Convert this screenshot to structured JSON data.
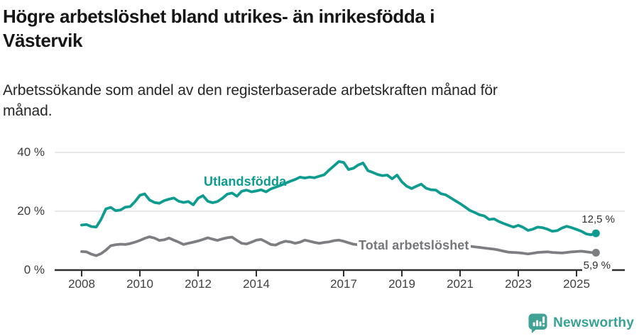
{
  "header": {
    "title_lines": [
      "Högre arbetslöshet bland utrikes- än inrikesfödda i",
      "Västervik"
    ],
    "subtitle_lines": [
      "Arbetssökande som andel av den registerbaserade arbetskraften månad för",
      "månad."
    ]
  },
  "chart_data": {
    "type": "line",
    "title": "Högre arbetslöshet bland utrikes- än inrikesfödda i Västervik",
    "subtitle": "Arbetssökande som andel av den registerbaserade arbetskraften månad för månad.",
    "unit": "percent",
    "ylim": [
      0,
      40
    ],
    "grid": "horizontal",
    "x_ticks": [
      2008,
      2010,
      2012,
      2014,
      2017,
      2019,
      2021,
      2023,
      2025
    ],
    "y_ticks": [
      {
        "value": 0,
        "label": "0 %"
      },
      {
        "value": 20,
        "label": "20 %"
      },
      {
        "value": 40,
        "label": "40 %"
      }
    ],
    "x_start": 2008.0,
    "x_step_years": 0.16667,
    "series": [
      {
        "name": "Utlandsfödda",
        "color": "#0d9c8f",
        "end_label": "12,5 %",
        "end_value": 12.5,
        "values": [
          15.3,
          15.5,
          14.8,
          14.6,
          17.2,
          20.8,
          21.3,
          20.2,
          20.4,
          21.4,
          21.6,
          23.3,
          25.4,
          25.9,
          23.8,
          23.0,
          22.7,
          23.6,
          24.1,
          24.5,
          23.4,
          23.0,
          23.3,
          22.2,
          24.4,
          25.3,
          23.4,
          22.9,
          23.3,
          24.4,
          25.8,
          26.2,
          25.1,
          26.8,
          27.2,
          26.6,
          26.9,
          27.3,
          26.6,
          27.6,
          28.2,
          28.8,
          29.5,
          30.2,
          30.8,
          31.6,
          31.3,
          31.6,
          31.4,
          31.9,
          32.4,
          34.0,
          35.4,
          36.9,
          36.6,
          34.2,
          34.6,
          35.7,
          36.4,
          33.8,
          33.2,
          32.5,
          32.1,
          32.3,
          31.0,
          32.3,
          30.0,
          28.5,
          27.7,
          28.5,
          29.2,
          27.8,
          27.3,
          27.2,
          26.0,
          25.6,
          24.6,
          23.6,
          22.6,
          21.5,
          20.3,
          19.6,
          18.8,
          18.4,
          17.2,
          17.4,
          16.5,
          15.8,
          15.2,
          14.6,
          15.2,
          14.5,
          13.5,
          13.9,
          14.6,
          14.4,
          13.9,
          13.2,
          13.4,
          14.3,
          14.9,
          14.4,
          13.8,
          13.2,
          12.3,
          12.0,
          12.5
        ]
      },
      {
        "name": "Total arbetslöshet",
        "color": "#7d7e81",
        "end_label": "5,9 %",
        "end_value": 5.9,
        "values": [
          6.3,
          6.2,
          5.4,
          4.9,
          5.6,
          6.8,
          8.3,
          8.6,
          8.8,
          8.7,
          9.0,
          9.5,
          10.1,
          10.8,
          11.3,
          10.9,
          10.1,
          10.3,
          10.9,
          10.2,
          9.5,
          8.7,
          9.1,
          9.5,
          9.9,
          10.4,
          11.0,
          10.5,
          10.1,
          10.6,
          11.0,
          11.2,
          10.1,
          9.1,
          8.9,
          9.5,
          10.2,
          10.4,
          9.6,
          8.7,
          8.5,
          9.3,
          9.8,
          9.6,
          9.1,
          9.5,
          10.2,
          9.8,
          9.4,
          9.1,
          9.4,
          9.6,
          10.0,
          10.2,
          9.8,
          9.3,
          8.8,
          8.6,
          8.4,
          8.3,
          8.2,
          8.0,
          7.9,
          7.8,
          7.7,
          7.6,
          7.5,
          7.5,
          7.6,
          7.7,
          7.8,
          7.9,
          8.0,
          8.3,
          8.6,
          8.8,
          8.9,
          8.8,
          8.6,
          8.4,
          8.1,
          7.9,
          7.7,
          7.5,
          7.3,
          7.1,
          6.8,
          6.4,
          6.1,
          6.0,
          5.9,
          5.7,
          5.5,
          5.7,
          6.0,
          6.1,
          6.2,
          6.0,
          5.9,
          5.8,
          6.0,
          6.2,
          6.3,
          6.4,
          6.2,
          6.0,
          5.9
        ]
      }
    ],
    "colors": {
      "accent": "#0d9c8f",
      "secondary": "#7d7e81",
      "axis": "#2f2f2f",
      "gridline": "#dadada",
      "text": "#3b3b3b"
    },
    "legend_position": "inline-labels"
  },
  "footer": {
    "brand": "Newsworthy",
    "brand_color": "#38a294",
    "logo_icon": "bar-chart-exclamation-bubble"
  }
}
